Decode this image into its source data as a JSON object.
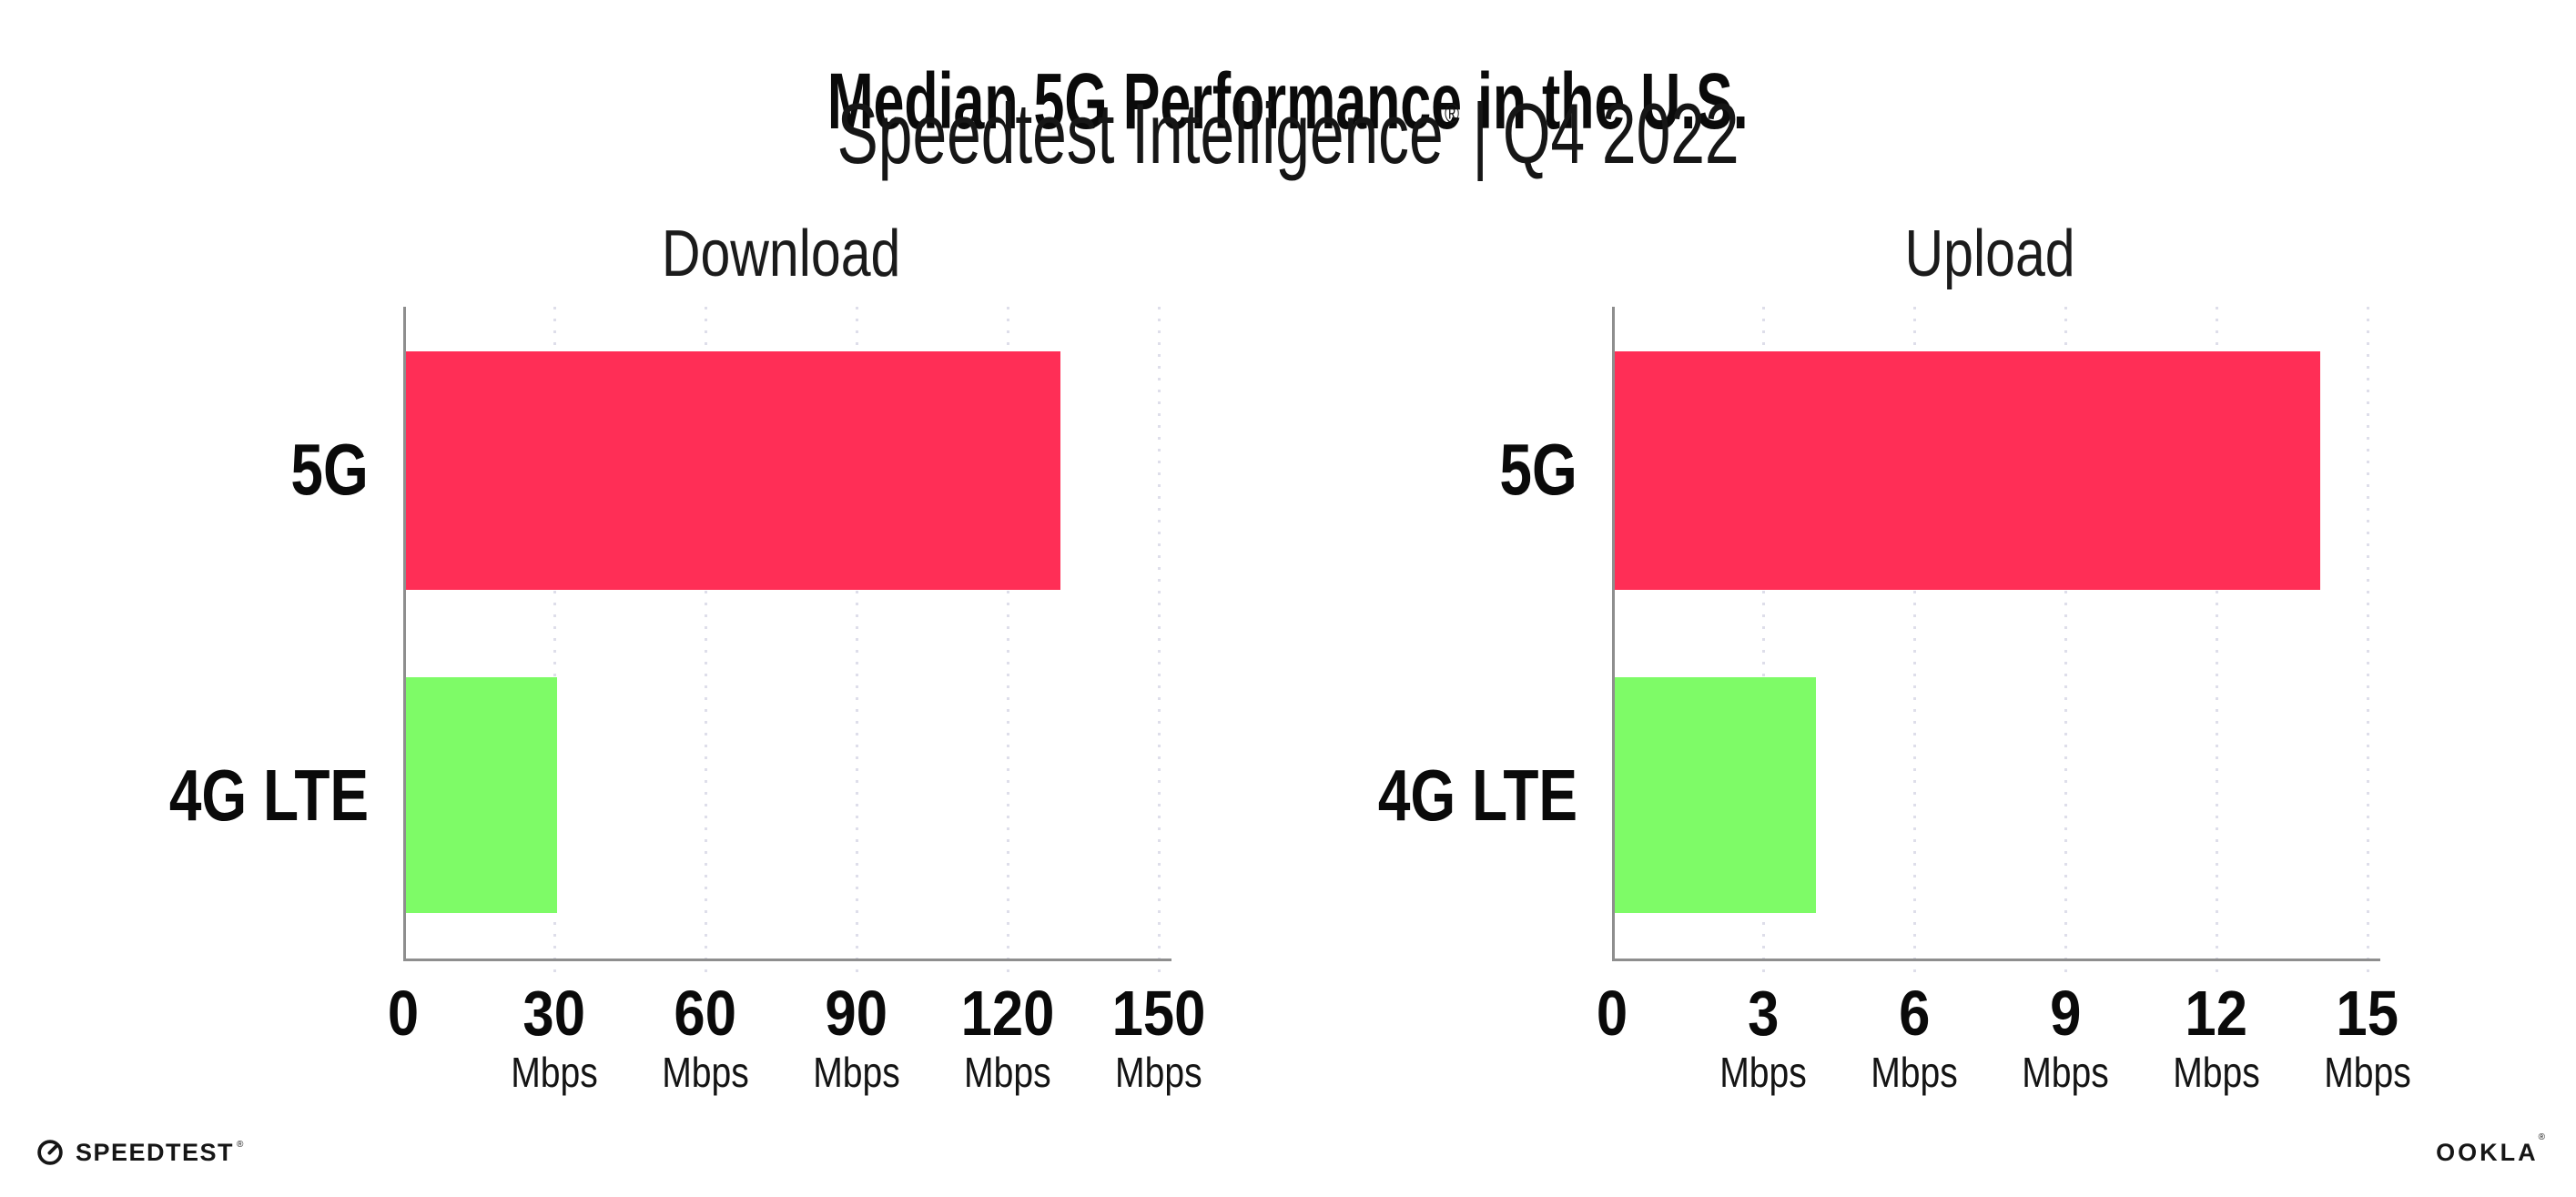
{
  "header": {
    "title": "Median 5G Performance in the U.S.",
    "subtitle_brand": "Speedtest Intelligence",
    "subtitle_reg": "®",
    "subtitle_sep": "|",
    "subtitle_period": "Q4 2022"
  },
  "footer": {
    "speedtest_wordmark": "SPEEDTEST",
    "speedtest_reg": "®",
    "speedtest_icon": "speedtest-gauge-icon",
    "ookla_wordmark": "OOKLA",
    "ookla_reg": "®"
  },
  "colors": {
    "bar_5g": "#ff2e56",
    "bar_4g_lte": "#7efb67",
    "axis": "#8e8e8e",
    "gridline": "#dedeea",
    "text": "#111111"
  },
  "chart_data": [
    {
      "type": "bar",
      "orientation": "horizontal",
      "title": "Download",
      "categories": [
        "5G",
        "4G LTE"
      ],
      "values": [
        130,
        30
      ],
      "unit": "Mbps",
      "xlim": [
        0,
        150
      ],
      "xticks": [
        0,
        30,
        60,
        90,
        120,
        150
      ],
      "bar_colors": [
        "#ff2e56",
        "#7efb67"
      ],
      "grid": "dotted-vertical",
      "legend": "none"
    },
    {
      "type": "bar",
      "orientation": "horizontal",
      "title": "Upload",
      "categories": [
        "5G",
        "4G LTE"
      ],
      "values": [
        14,
        4
      ],
      "unit": "Mbps",
      "xlim": [
        0,
        15
      ],
      "xticks": [
        0,
        3,
        6,
        9,
        12,
        15
      ],
      "bar_colors": [
        "#ff2e56",
        "#7efb67"
      ],
      "grid": "dotted-vertical",
      "legend": "none"
    }
  ]
}
